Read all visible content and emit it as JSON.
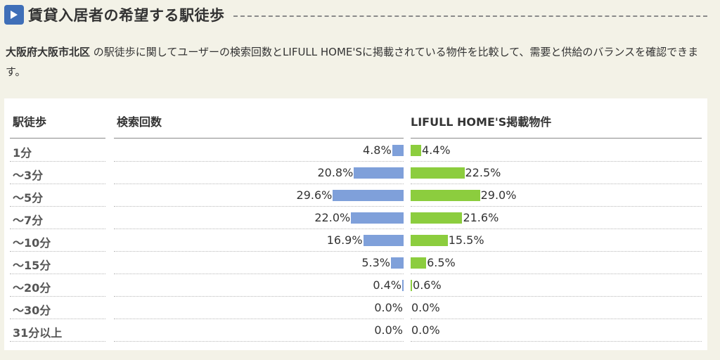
{
  "header": {
    "title": "賃貸入居者の希望する駅徒歩"
  },
  "description": {
    "region": "大阪府大阪市北区",
    "text": " の駅徒歩に関してユーザーの検索回数とLIFULL HOME'Sに掲載されている物件を比較して、需要と供給のバランスを確認できます。"
  },
  "colors": {
    "search_bar": "#7fa0da",
    "listing_bar": "#8ccd3e",
    "accent": "#3f6fb8"
  },
  "icons": {
    "header": "play-icon"
  },
  "chart_data": {
    "type": "bar",
    "columns": [
      "駅徒歩",
      "検索回数",
      "LIFULL HOME'S掲載物件"
    ],
    "categories": [
      "1分",
      "〜3分",
      "〜5分",
      "〜7分",
      "〜10分",
      "〜15分",
      "〜20分",
      "〜30分",
      "31分以上"
    ],
    "series": [
      {
        "name": "検索回数",
        "values": [
          4.8,
          20.8,
          29.6,
          22.0,
          16.9,
          5.3,
          0.4,
          0.0,
          0.0
        ],
        "labels": [
          "4.8%",
          "20.8%",
          "29.6%",
          "22.0%",
          "16.9%",
          "5.3%",
          "0.4%",
          "0.0%",
          "0.0%"
        ]
      },
      {
        "name": "LIFULL HOME'S掲載物件",
        "values": [
          4.4,
          22.5,
          29.0,
          21.6,
          15.5,
          6.5,
          0.6,
          0.0,
          0.0
        ],
        "labels": [
          "4.4%",
          "22.5%",
          "29.0%",
          "21.6%",
          "15.5%",
          "6.5%",
          "0.6%",
          "0.0%",
          "0.0%"
        ]
      }
    ],
    "unit": "%"
  }
}
